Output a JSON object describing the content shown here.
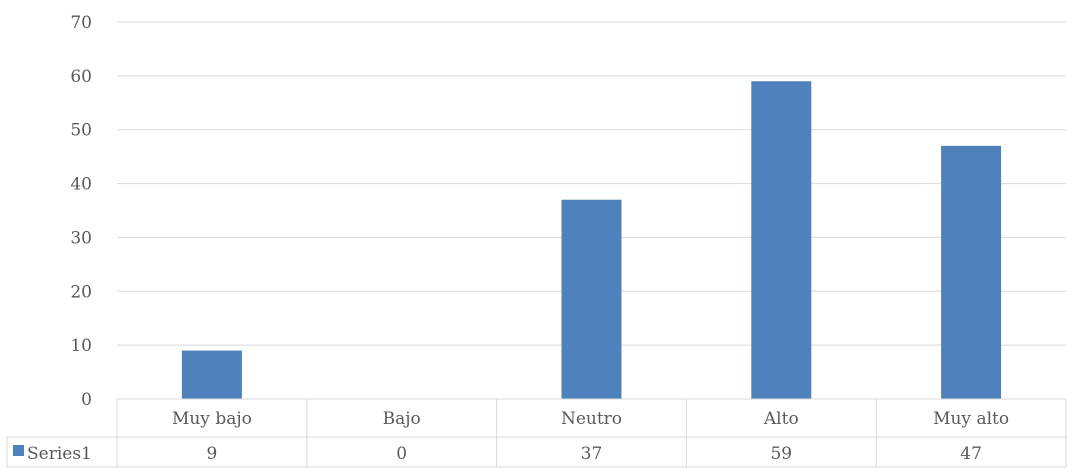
{
  "chart_data": {
    "type": "bar",
    "categories": [
      "Muy bajo",
      "Bajo",
      "Neutro",
      "Alto",
      "Muy alto"
    ],
    "series": [
      {
        "name": "Series1",
        "values": [
          9,
          0,
          37,
          59,
          47
        ],
        "color": "#4F81BD"
      }
    ],
    "y_ticks": [
      0,
      10,
      20,
      30,
      40,
      50,
      60,
      70
    ],
    "ylim": [
      0,
      70
    ],
    "grid": true,
    "data_table": true,
    "legend": "data-table-left",
    "colors": {
      "bar": "#4F81BD",
      "grid": "#D9D9D9",
      "text": "#595959"
    }
  }
}
